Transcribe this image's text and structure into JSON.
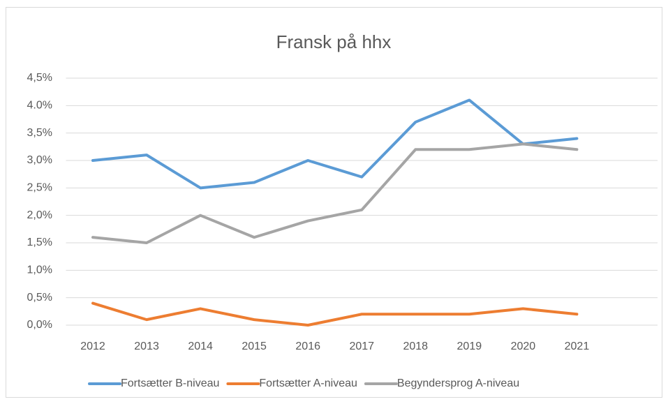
{
  "chart_data": {
    "type": "line",
    "title": "Fransk på hhx",
    "categories": [
      "2012",
      "2013",
      "2014",
      "2015",
      "2016",
      "2017",
      "2018",
      "2019",
      "2020",
      "2021",
      null
    ],
    "series": [
      {
        "name": "Fortsætter B-niveau",
        "color": "#5b9bd5",
        "values": [
          3.0,
          3.1,
          2.5,
          2.6,
          3.0,
          2.7,
          3.7,
          4.1,
          3.3,
          3.4,
          null
        ]
      },
      {
        "name": "Fortsætter A-niveau",
        "color": "#ed7d31",
        "values": [
          0.4,
          0.1,
          0.3,
          0.1,
          0.0,
          0.2,
          0.2,
          0.2,
          0.3,
          0.2,
          null
        ]
      },
      {
        "name": "Begyndersprog A-niveau",
        "color": "#a5a5a5",
        "values": [
          1.6,
          1.5,
          2.0,
          1.6,
          1.9,
          2.1,
          3.2,
          3.2,
          3.3,
          3.2,
          null
        ]
      }
    ],
    "ylim": [
      0,
      4.5
    ],
    "yticks": [
      {
        "value": 0,
        "label": "0,0%"
      },
      {
        "value": 0.5,
        "label": "0,5%"
      },
      {
        "value": 1.0,
        "label": "1,0%"
      },
      {
        "value": 1.5,
        "label": "1,5%"
      },
      {
        "value": 2.0,
        "label": "2,0%"
      },
      {
        "value": 2.5,
        "label": "2,5%"
      },
      {
        "value": 3.0,
        "label": "3,0%"
      },
      {
        "value": 3.5,
        "label": "3,5%"
      },
      {
        "value": 4.0,
        "label": "4.0%"
      },
      {
        "value": 4.5,
        "label": "4,5%"
      }
    ],
    "grid": true,
    "legend": "bottom"
  }
}
